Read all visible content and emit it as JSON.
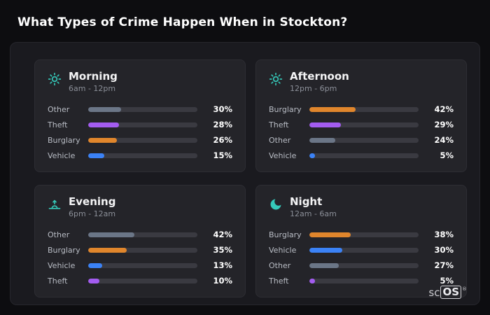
{
  "title": "What Types of Crime Happen When in Stockton?",
  "logo": {
    "prefix": "sc",
    "boxed": "OS",
    "reg": "®"
  },
  "colors": {
    "Other": "#6b7687",
    "Theft": "#a35cf0",
    "Burglary": "#e0862c",
    "Vehicle": "#3b82f6",
    "track": "#3a3a41",
    "icon": "#35c9b9",
    "accent_title": "#ffffff"
  },
  "chart_data": [
    {
      "type": "bar",
      "title": "Morning",
      "subtitle": "6am - 12pm",
      "icon": "sun-icon",
      "categories": [
        "Other",
        "Theft",
        "Burglary",
        "Vehicle"
      ],
      "values": [
        30,
        28,
        26,
        15
      ],
      "unit": "%",
      "xlim": [
        0,
        100
      ],
      "legend": "none",
      "grid": false
    },
    {
      "type": "bar",
      "title": "Afternoon",
      "subtitle": "12pm - 6pm",
      "icon": "sun-icon",
      "categories": [
        "Burglary",
        "Theft",
        "Other",
        "Vehicle"
      ],
      "values": [
        42,
        29,
        24,
        5
      ],
      "unit": "%",
      "xlim": [
        0,
        100
      ],
      "legend": "none",
      "grid": false
    },
    {
      "type": "bar",
      "title": "Evening",
      "subtitle": "6pm - 12am",
      "icon": "sunset-icon",
      "categories": [
        "Other",
        "Burglary",
        "Vehicle",
        "Theft"
      ],
      "values": [
        42,
        35,
        13,
        10
      ],
      "unit": "%",
      "xlim": [
        0,
        100
      ],
      "legend": "none",
      "grid": false
    },
    {
      "type": "bar",
      "title": "Night",
      "subtitle": "12am - 6am",
      "icon": "moon-icon",
      "categories": [
        "Burglary",
        "Vehicle",
        "Other",
        "Theft"
      ],
      "values": [
        38,
        30,
        27,
        5
      ],
      "unit": "%",
      "xlim": [
        0,
        100
      ],
      "legend": "none",
      "grid": false
    }
  ]
}
